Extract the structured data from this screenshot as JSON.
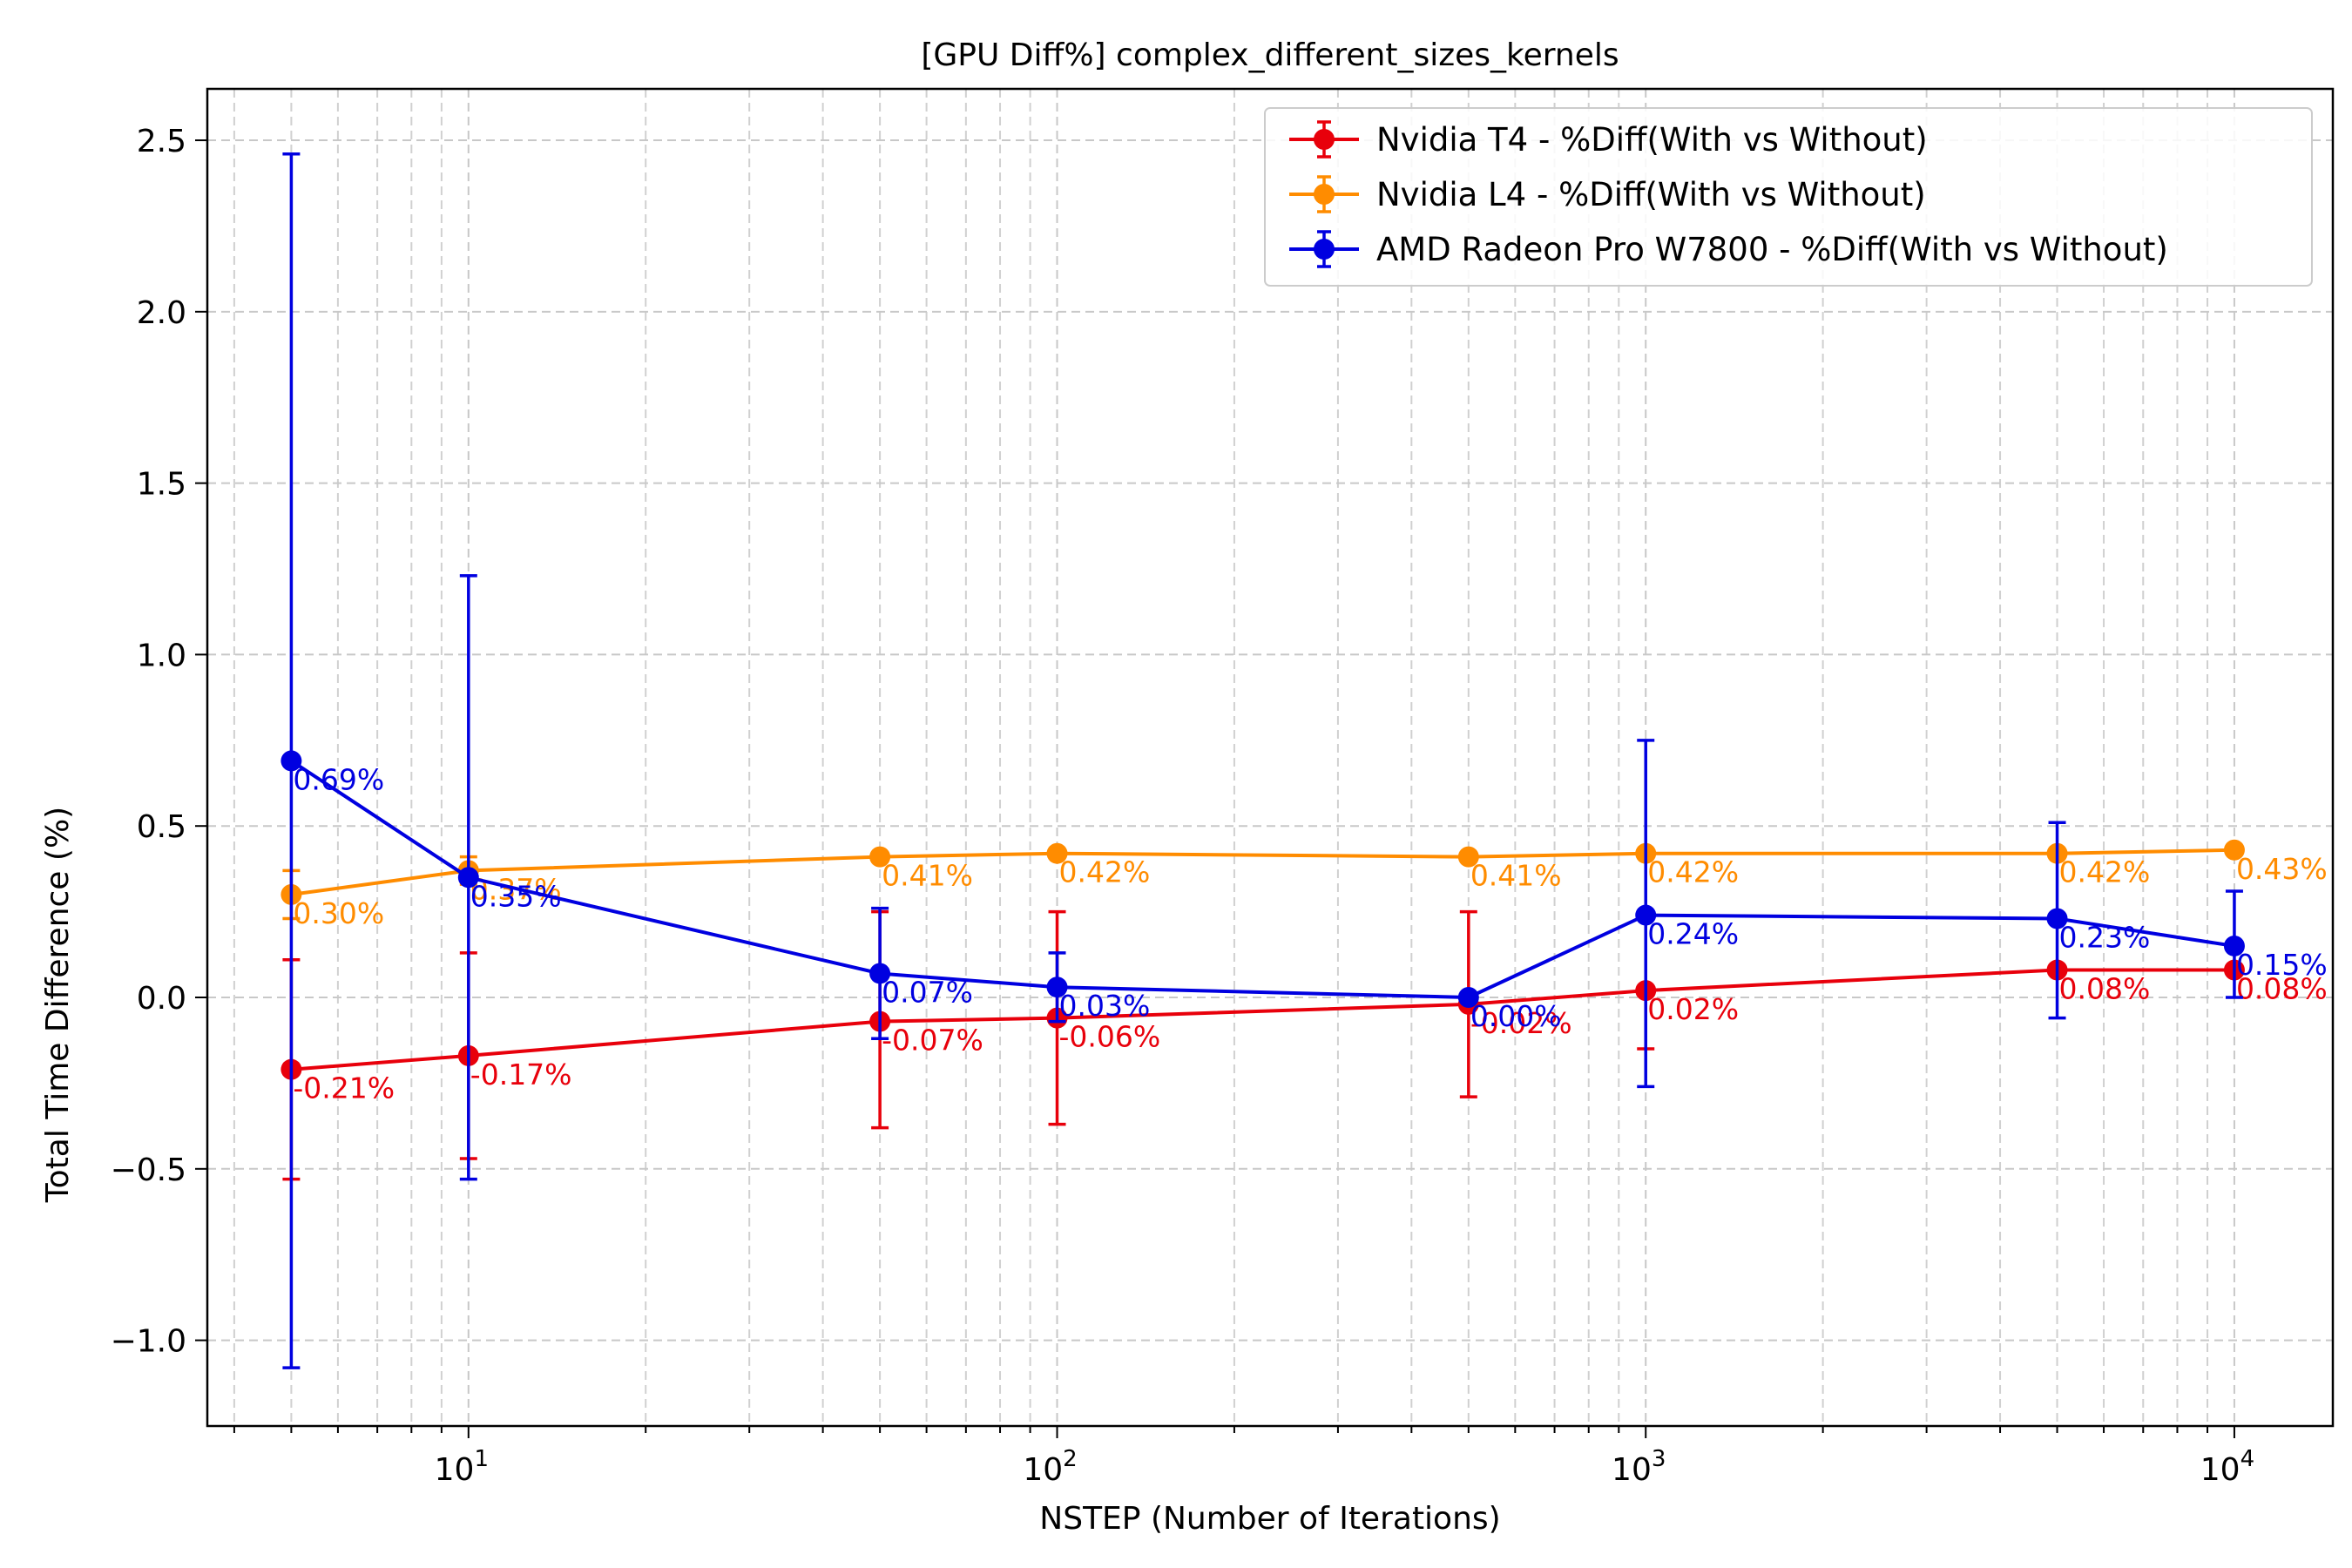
{
  "chart_data": {
    "type": "line",
    "title": "[GPU Diff%] complex_different_sizes_kernels",
    "xlabel": "NSTEP (Number of Iterations)",
    "ylabel": "Total Time Difference (%)",
    "xscale": "log",
    "xlim": [
      3.6,
      14700
    ],
    "ylim": [
      -1.25,
      2.65
    ],
    "x_ticks": [
      {
        "value": 10,
        "base": "10",
        "exp": "1"
      },
      {
        "value": 100,
        "base": "10",
        "exp": "2"
      },
      {
        "value": 1000,
        "base": "10",
        "exp": "3"
      },
      {
        "value": 10000,
        "base": "10",
        "exp": "4"
      }
    ],
    "y_ticks": [
      {
        "value": 2.5,
        "label": "2.5"
      },
      {
        "value": 2.0,
        "label": "2.0"
      },
      {
        "value": 1.5,
        "label": "1.5"
      },
      {
        "value": 1.0,
        "label": "1.0"
      },
      {
        "value": 0.5,
        "label": "0.5"
      },
      {
        "value": 0.0,
        "label": "0.0"
      },
      {
        "value": -0.5,
        "label": "−0.5"
      },
      {
        "value": -1.0,
        "label": "−1.0"
      }
    ],
    "grid": true,
    "legend_position": "top-right",
    "x": [
      5,
      10,
      50,
      100,
      500,
      1000,
      5000,
      10000
    ],
    "series": [
      {
        "name": "Nvidia T4 - %Diff(With vs Without)",
        "color": "#e8000b",
        "values": [
          -0.21,
          -0.17,
          -0.07,
          -0.06,
          -0.02,
          0.02,
          0.08,
          0.08
        ],
        "error_low": [
          -0.53,
          -0.47,
          -0.38,
          -0.37,
          -0.29,
          -0.15,
          0.08,
          0.08
        ],
        "error_high": [
          0.11,
          0.13,
          0.25,
          0.25,
          0.25,
          0.02,
          0.08,
          0.08
        ],
        "labels": [
          "-0.21%",
          "-0.17%",
          "-0.07%",
          "-0.06%",
          "-0.02%",
          "0.02%",
          "0.08%",
          "0.08%"
        ]
      },
      {
        "name": "Nvidia L4 - %Diff(With vs Without)",
        "color": "#ff8c00",
        "values": [
          0.3,
          0.37,
          0.41,
          0.42,
          0.41,
          0.42,
          0.42,
          0.43
        ],
        "error_low": [
          0.23,
          0.33,
          0.41,
          0.42,
          0.41,
          0.42,
          0.42,
          0.43
        ],
        "error_high": [
          0.37,
          0.41,
          0.41,
          0.42,
          0.41,
          0.42,
          0.42,
          0.43
        ],
        "labels": [
          "0.30%",
          "0.37%",
          "0.41%",
          "0.42%",
          "0.41%",
          "0.42%",
          "0.42%",
          "0.43%"
        ]
      },
      {
        "name": "AMD Radeon Pro W7800 - %Diff(With vs Without)",
        "color": "#0000e0",
        "values": [
          0.69,
          0.35,
          0.07,
          0.03,
          0.0,
          0.24,
          0.23,
          0.15
        ],
        "error_low": [
          -1.08,
          -0.53,
          -0.12,
          -0.07,
          0.0,
          -0.26,
          -0.06,
          0.0
        ],
        "error_high": [
          2.46,
          1.23,
          0.26,
          0.13,
          0.0,
          0.75,
          0.51,
          0.31
        ],
        "labels": [
          "0.69%",
          "0.35%",
          "0.07%",
          "0.03%",
          "0.00%",
          "0.24%",
          "0.23%",
          "0.15%"
        ]
      }
    ]
  }
}
